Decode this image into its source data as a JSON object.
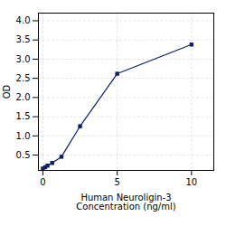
{
  "chart_data": {
    "type": "line",
    "x_label": "Human Neuroligin-3\nConcentration (ng/ml)",
    "y_label": "OD",
    "x": [
      0.0,
      0.156,
      0.313,
      0.625,
      1.25,
      2.5,
      5.0,
      10.0
    ],
    "values": [
      0.148,
      0.182,
      0.224,
      0.294,
      0.456,
      1.25,
      2.62,
      3.38
    ],
    "color": "#0d1f6b",
    "marker": "square",
    "xlim": [
      -0.3,
      11.5
    ],
    "xticks": [
      0,
      5,
      10
    ],
    "ylim": [
      0.1,
      4.2
    ],
    "yticks": [
      0.5,
      {
        "value": 1.0,
        "label": "1.0"
      },
      1.5,
      {
        "value": 2.0,
        "label": "2.0"
      },
      2.5,
      {
        "value": 3.0,
        "label": "3.0"
      },
      3.5,
      {
        "value": 4.0,
        "label": "4.0"
      }
    ],
    "grid": true
  }
}
